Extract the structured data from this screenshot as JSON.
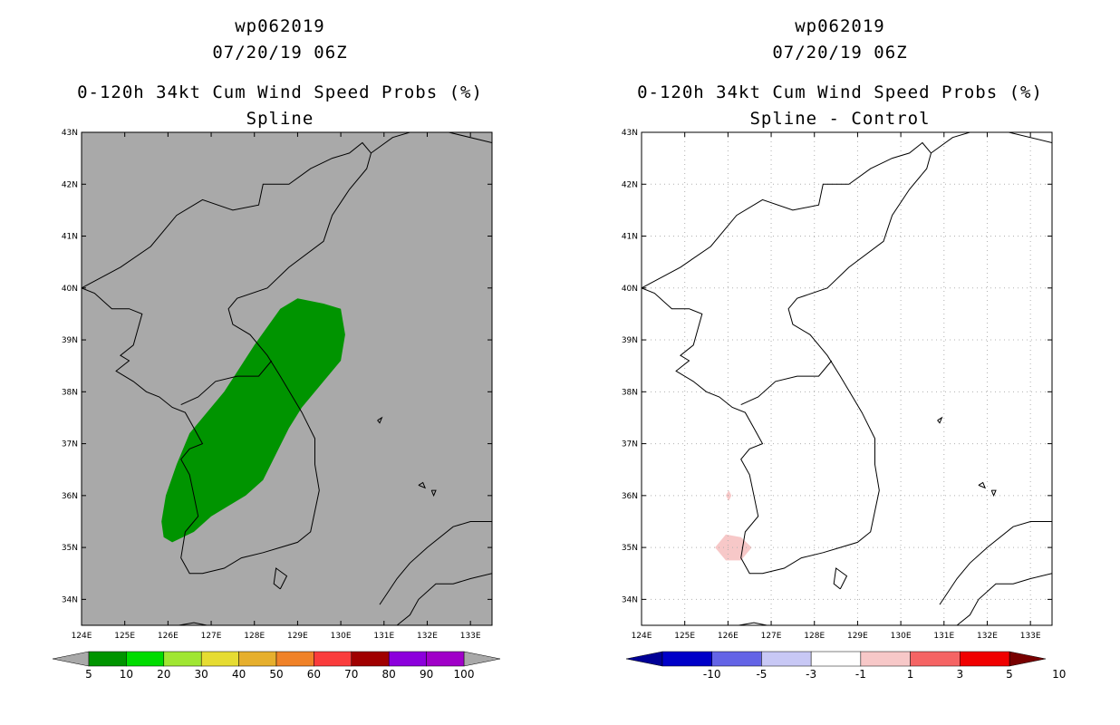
{
  "chart_data": [
    {
      "type": "map",
      "storm_id": "wp062019",
      "datetime": "07/20/19 06Z",
      "title": "0-120h 34kt Cum Wind Speed Probs (%)",
      "subtitle": "Spline",
      "lon_range": [
        124,
        133.5
      ],
      "lat_range": [
        33.5,
        43
      ],
      "x_ticks": [
        "124E",
        "125E",
        "126E",
        "127E",
        "128E",
        "129E",
        "130E",
        "131E",
        "132E",
        "133E"
      ],
      "y_ticks": [
        "34N",
        "35N",
        "36N",
        "37N",
        "38N",
        "39N",
        "40N",
        "41N",
        "42N",
        "43N"
      ],
      "grid": false,
      "background_color": "#a9a9a9",
      "shaded_regions": [
        {
          "value_bin": "5-10",
          "color": "#009400",
          "polygon": [
            [
              125.9,
              35.2
            ],
            [
              125.85,
              35.5
            ],
            [
              125.95,
              36.0
            ],
            [
              126.2,
              36.6
            ],
            [
              126.5,
              37.2
            ],
            [
              127.3,
              38.0
            ],
            [
              128.0,
              38.9
            ],
            [
              128.6,
              39.6
            ],
            [
              129.0,
              39.8
            ],
            [
              129.6,
              39.7
            ],
            [
              130.0,
              39.6
            ],
            [
              130.1,
              39.1
            ],
            [
              130.0,
              38.6
            ],
            [
              129.6,
              38.2
            ],
            [
              129.1,
              37.7
            ],
            [
              128.8,
              37.3
            ],
            [
              128.5,
              36.8
            ],
            [
              128.2,
              36.3
            ],
            [
              127.8,
              36.0
            ],
            [
              127.0,
              35.6
            ],
            [
              126.6,
              35.3
            ],
            [
              126.1,
              35.1
            ],
            [
              125.9,
              35.2
            ]
          ]
        }
      ],
      "colorbar": {
        "labels": [
          "5",
          "10",
          "20",
          "30",
          "40",
          "50",
          "60",
          "70",
          "80",
          "90",
          "100"
        ],
        "colors": [
          "#009400",
          "#00dc00",
          "#a0e632",
          "#e6dc32",
          "#e6af2d",
          "#f08228",
          "#fa3c3c",
          "#a00000",
          "#8c00dc",
          "#a000c8"
        ],
        "extend_colors": [
          "#a9a9a9",
          "#a9a9a9"
        ]
      }
    },
    {
      "type": "map",
      "storm_id": "wp062019",
      "datetime": "07/20/19 06Z",
      "title": "0-120h 34kt Cum Wind Speed Probs (%)",
      "subtitle": "Spline - Control",
      "lon_range": [
        124,
        133.5
      ],
      "lat_range": [
        33.5,
        43
      ],
      "x_ticks": [
        "124E",
        "125E",
        "126E",
        "127E",
        "128E",
        "129E",
        "130E",
        "131E",
        "132E",
        "133E"
      ],
      "y_ticks": [
        "34N",
        "35N",
        "36N",
        "37N",
        "38N",
        "39N",
        "40N",
        "41N",
        "42N",
        "43N"
      ],
      "grid": true,
      "background_color": "#ffffff",
      "shaded_regions": [
        {
          "value_bin": "1-3",
          "color": "#f7c8c8",
          "polygon": [
            [
              125.7,
              35.0
            ],
            [
              125.95,
              35.25
            ],
            [
              126.3,
              35.2
            ],
            [
              126.55,
              35.0
            ],
            [
              126.3,
              34.75
            ],
            [
              125.95,
              34.75
            ],
            [
              125.7,
              35.0
            ]
          ]
        },
        {
          "value_bin": "1-3",
          "color": "#f7c8c8",
          "polygon": [
            [
              125.95,
              36.0
            ],
            [
              126.02,
              36.1
            ],
            [
              126.08,
              36.0
            ],
            [
              126.02,
              35.9
            ],
            [
              125.95,
              36.0
            ]
          ]
        }
      ],
      "colorbar": {
        "labels": [
          "-10",
          "-5",
          "-3",
          "-1",
          "1",
          "3",
          "5",
          "10"
        ],
        "colors": [
          "#0000c8",
          "#6464e6",
          "#c8c8f5",
          "#ffffff",
          "#f7c8c8",
          "#f56464",
          "#f00000"
        ],
        "extend_colors": [
          "#000096",
          "#780000"
        ]
      }
    }
  ]
}
